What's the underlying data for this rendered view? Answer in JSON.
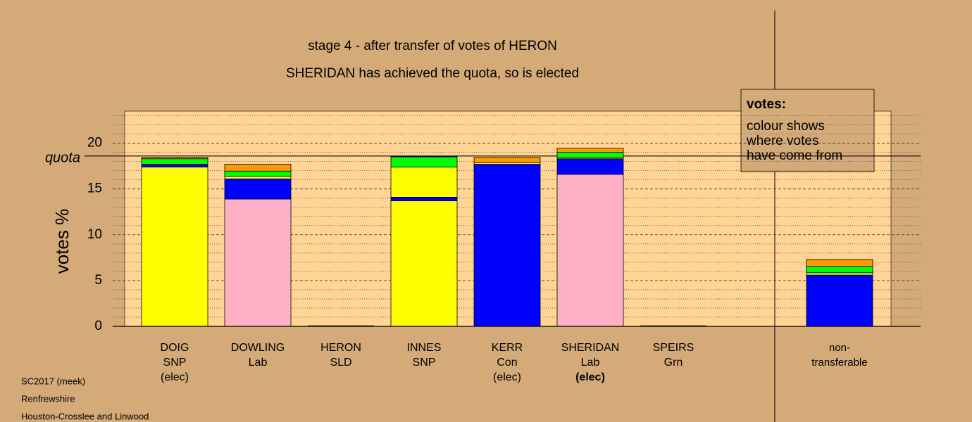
{
  "chart_data": {
    "type": "stacked-bar",
    "title": "stage 4 - after transfer of votes of HERON",
    "subtitle": "SHERIDAN has achieved the quota, so is elected",
    "ylabel": "votes %",
    "quota": {
      "label": "quota",
      "value": 18.6
    },
    "ylim": [
      0,
      23.5
    ],
    "yticks": [
      0,
      5,
      10,
      15,
      20
    ],
    "minor_yticks": [
      1,
      2,
      3,
      4,
      6,
      7,
      8,
      9,
      11,
      12,
      13,
      14,
      16,
      17,
      18,
      19,
      21,
      22,
      23
    ],
    "grid": true,
    "legend": {
      "title": "votes:",
      "lines": [
        "colour shows",
        "where votes",
        "have come from"
      ]
    },
    "bars": [
      {
        "label": [
          "DOIG",
          "SNP",
          "(elec)"
        ],
        "segments": [
          {
            "color": "#ffff00",
            "value": 17.4
          },
          {
            "color": "#0000ff",
            "value": 0.3
          },
          {
            "color": "#00ff00",
            "value": 0.6
          },
          {
            "color": "#ff9900",
            "value": 0.15
          }
        ]
      },
      {
        "label": [
          "DOWLING",
          "Lab"
        ],
        "segments": [
          {
            "color": "#ffb0c4",
            "value": 13.9
          },
          {
            "color": "#0000ff",
            "value": 2.2
          },
          {
            "color": "#ffff00",
            "value": 0.3
          },
          {
            "color": "#00ff00",
            "value": 0.55
          },
          {
            "color": "#ff9900",
            "value": 0.75
          }
        ]
      },
      {
        "label": [
          "HERON",
          "SLD"
        ],
        "segments": [
          {
            "color": "#ff9900",
            "value": 0
          }
        ]
      },
      {
        "label": [
          "INNES",
          "SNP"
        ],
        "segments": [
          {
            "color": "#ffff00",
            "value": 13.7
          },
          {
            "color": "#0000ff",
            "value": 0.4
          },
          {
            "color": "#ffff00",
            "value": 3.3
          },
          {
            "color": "#00ff00",
            "value": 1.1
          },
          {
            "color": "#ff9900",
            "value": 0.05
          }
        ]
      },
      {
        "label": [
          "KERR",
          "Con",
          "(elec)"
        ],
        "segments": [
          {
            "color": "#0000ff",
            "value": 17.7
          },
          {
            "color": "#ffff00",
            "value": 0.15
          },
          {
            "color": "#ff9900",
            "value": 0.6
          }
        ]
      },
      {
        "label": [
          "SHERIDAN",
          "Lab",
          "(elec)"
        ],
        "segments": [
          {
            "color": "#ffb0c4",
            "value": 16.6
          },
          {
            "color": "#0000ff",
            "value": 1.7
          },
          {
            "color": "#ffff00",
            "value": 0.15
          },
          {
            "color": "#00ff00",
            "value": 0.55
          },
          {
            "color": "#ff9900",
            "value": 0.45
          }
        ]
      },
      {
        "label": [
          "SPEIRS",
          "Grn"
        ],
        "segments": [
          {
            "color": "#00ff00",
            "value": 0
          }
        ]
      },
      {
        "label": [
          "non-",
          "transferable"
        ],
        "segments": [
          {
            "color": "#0000ff",
            "value": 5.6
          },
          {
            "color": "#ffff00",
            "value": 0.25
          },
          {
            "color": "#00ff00",
            "value": 0.7
          },
          {
            "color": "#ff9900",
            "value": 0.75
          }
        ]
      }
    ],
    "footer": [
      "SC2017 (meek)",
      "Renfrewshire",
      "Houston-Crosslee and Linwood"
    ]
  }
}
